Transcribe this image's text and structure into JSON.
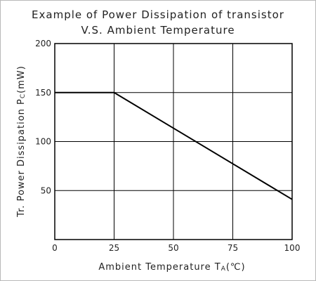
{
  "chart_data": {
    "type": "line",
    "title": "Example of Power Dissipation of transistor",
    "subtitle": "V.S. Ambient Temperature",
    "xlabel": {
      "main": "Ambient Temperature T",
      "sub": "A",
      "unit": "(℃)"
    },
    "ylabel": {
      "main": "Tr. Power Dissipation P",
      "sub": "C",
      "unit": "(mW)"
    },
    "xlim": [
      0,
      100
    ],
    "ylim": [
      0,
      200
    ],
    "xticks": [
      "0",
      "25",
      "50",
      "75",
      "100"
    ],
    "yticks": [
      "50",
      "100",
      "150",
      "200"
    ],
    "grid": true,
    "series": [
      {
        "x": [
          0,
          25,
          100
        ],
        "y": [
          150,
          150,
          41
        ]
      }
    ]
  }
}
